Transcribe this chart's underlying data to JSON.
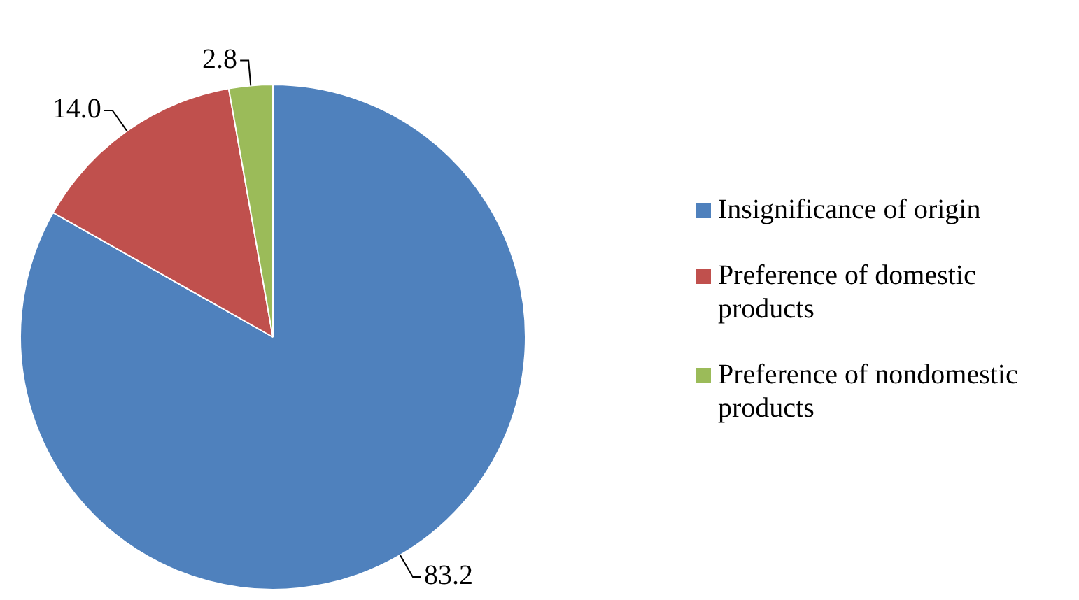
{
  "chart_data": {
    "type": "pie",
    "categories": [
      "Insignificance of origin",
      "Preference of domestic products",
      "Preference of nondomestic products"
    ],
    "values": [
      83.2,
      14.0,
      2.8
    ],
    "value_labels": [
      "83.2",
      "14.0",
      "2.8"
    ],
    "colors": [
      "#4f81bd",
      "#c0504d",
      "#9bbb59"
    ],
    "legend": "right"
  }
}
